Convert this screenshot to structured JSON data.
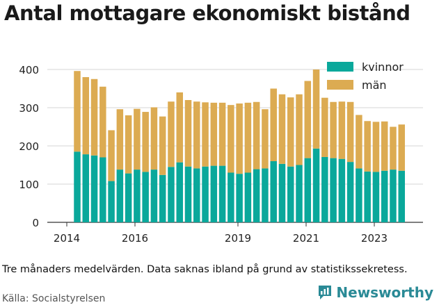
{
  "title": "Antal mottagare ekonomiskt bistånd",
  "footnote": "Tre månaders medelvärden. Data saknas ibland på grund av statistikssekretess.",
  "source": "Källa: Socialstyrelsen",
  "brand": "Newsworthy",
  "colors": {
    "kvinnor": "#0aa89b",
    "man": "#dcab52",
    "grid": "#d6d6d6",
    "brand": "#2a8a96"
  },
  "chart_data": {
    "type": "bar",
    "stacked": true,
    "x_ticks": [
      "2014",
      "2016",
      "2019",
      "2021",
      "2023"
    ],
    "y_ticks": [
      0,
      100,
      200,
      300,
      400
    ],
    "ylim": [
      0,
      420
    ],
    "legend_position": "top-right",
    "grid": true,
    "series": [
      {
        "name": "kvinnor",
        "values": [
          185,
          178,
          175,
          170,
          108,
          138,
          128,
          138,
          132,
          138,
          124,
          145,
          157,
          146,
          141,
          146,
          148,
          148,
          130,
          127,
          130,
          139,
          141,
          160,
          153,
          146,
          150,
          168,
          193,
          171,
          168,
          166,
          158,
          141,
          133,
          132,
          135,
          138,
          135
        ]
      },
      {
        "name": "män",
        "values": [
          211,
          202,
          200,
          185,
          133,
          158,
          152,
          159,
          157,
          163,
          153,
          171,
          183,
          174,
          175,
          168,
          165,
          165,
          177,
          184,
          183,
          176,
          155,
          190,
          182,
          181,
          185,
          202,
          207,
          155,
          147,
          150,
          157,
          140,
          132,
          131,
          129,
          112,
          121
        ]
      }
    ]
  }
}
